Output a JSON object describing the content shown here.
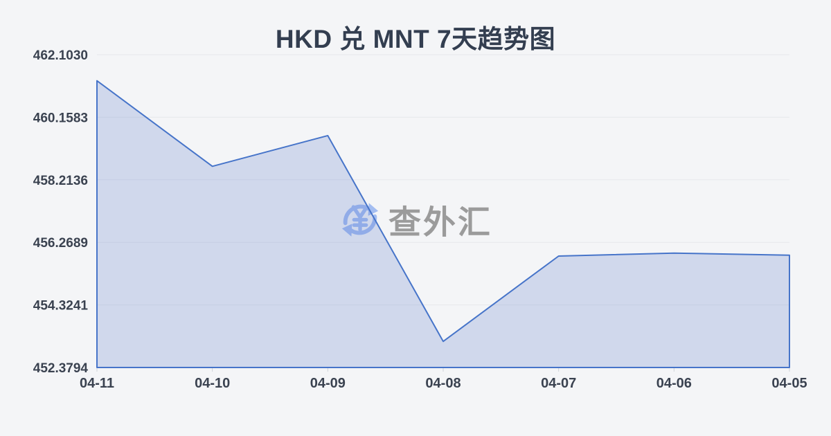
{
  "title": "HKD 兑 MNT 7天趋势图",
  "watermark": {
    "icon": "currency-exchange-icon",
    "text": "查外汇"
  },
  "chart_data": {
    "type": "area",
    "title": "HKD 兑 MNT 7天趋势图",
    "categories": [
      "04-11",
      "04-10",
      "04-09",
      "04-08",
      "04-07",
      "04-06",
      "04-05"
    ],
    "series": [
      {
        "name": "HKD/MNT",
        "values": [
          461.293,
          458.633,
          459.587,
          453.19,
          455.843,
          455.935,
          455.871
        ]
      }
    ],
    "xlabel": "",
    "ylabel": "",
    "ylim": [
      452.3794,
      462.103
    ],
    "y_ticks": [
      452.3794,
      454.3241,
      456.2689,
      458.2136,
      460.1583,
      462.103
    ],
    "y_tick_labels": [
      "452.3794",
      "454.3241",
      "456.2689",
      "458.2136",
      "460.1583",
      "462.1030"
    ],
    "x_axis_order": "reverse-chronological",
    "grid": true,
    "legend": false
  },
  "colors": {
    "background": "#f4f5f7",
    "title_text": "#333e50",
    "axis_label_text": "#3a4250",
    "line": "#4674c9",
    "area_fill": "rgba(84,116,200,0.22)",
    "grid": "#e6e8eb",
    "axis_tick": "#cfd3d9",
    "watermark_text": "#9b9b9b",
    "watermark_icon": "#a3bdf1"
  }
}
